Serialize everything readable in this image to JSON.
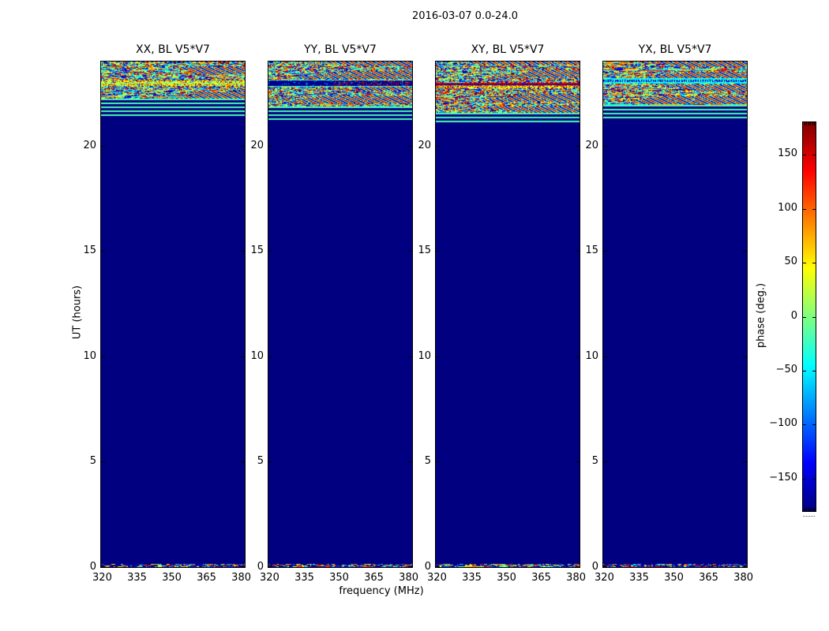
{
  "figure": {
    "title": "2016-03-07 0.0-24.0",
    "background_color": "#ffffff",
    "text_color": "#000000"
  },
  "chart_data": {
    "type": "heatmap",
    "title": "2016-03-07 0.0-24.0",
    "xlabel": "frequency (MHz)",
    "ylabel": "UT (hours)",
    "xlim": [
      319.5,
      381.5
    ],
    "ylim": [
      0,
      24
    ],
    "xticks": [
      320,
      335,
      350,
      365,
      380
    ],
    "xtick_labels": [
      "320",
      "335",
      "350",
      "365",
      "380"
    ],
    "yticks": [
      0,
      5,
      10,
      15,
      20
    ],
    "ytick_labels": [
      "0",
      "5",
      "10",
      "15",
      "20"
    ],
    "colormap": "jet",
    "value_field": "visibility phase",
    "value_unit": "deg",
    "value_range": [
      -180,
      180
    ],
    "background_value_deg": -180,
    "palette": {
      "navy": "#000080",
      "blue": "#0000ff",
      "cyan": "#00ffff",
      "mint_green": "#4dffb3",
      "yellow": "#ffff00",
      "red": "#ff0000",
      "dark_red": "#800000"
    },
    "colorbar": {
      "label": "phase (deg.)",
      "min": -180,
      "max": 180,
      "ticks": [
        150,
        100,
        50,
        0,
        -50,
        -100,
        -150
      ],
      "tick_labels": [
        "150",
        "100",
        "50",
        "0",
        "−50",
        "−100",
        "−150"
      ]
    },
    "panels": [
      {
        "key": "xx",
        "label": "XX, BL V5*V7",
        "seed": 101,
        "regions": {
          "noise_band_ut": [
            22.25,
            24.0
          ],
          "feature_band_ut": 23.1,
          "feature_style": "yellow-speckle",
          "stripe_band_ut": [
            21.42,
            22.25
          ],
          "solid_ut": [
            0.15,
            21.42
          ],
          "bottom_noise_ut": [
            0.0,
            0.15
          ]
        }
      },
      {
        "key": "yy",
        "label": "YY, BL V5*V7",
        "seed": 202,
        "regions": {
          "noise_band_ut": [
            21.87,
            24.0
          ],
          "feature_band_ut": 23.15,
          "feature_style": "navy-lines",
          "stripe_band_ut": [
            21.24,
            21.87
          ],
          "solid_ut": [
            0.15,
            21.24
          ],
          "bottom_noise_ut": [
            0.0,
            0.15
          ]
        }
      },
      {
        "key": "xy",
        "label": "XY, BL V5*V7",
        "seed": 303,
        "regions": {
          "noise_band_ut": [
            21.57,
            24.0
          ],
          "feature_band_ut": 23.0,
          "feature_style": "red-yellow",
          "stripe_band_ut": [
            21.0,
            21.57
          ],
          "solid_ut": [
            0.15,
            21.0
          ],
          "bottom_noise_ut": [
            0.0,
            0.15
          ]
        }
      },
      {
        "key": "yx",
        "label": "YX, BL V5*V7",
        "seed": 404,
        "regions": {
          "noise_band_ut": [
            21.93,
            24.0
          ],
          "feature_band_ut": 23.2,
          "feature_style": "cyan-band",
          "stripe_band_ut": [
            21.31,
            21.93
          ],
          "solid_ut": [
            0.15,
            21.31
          ],
          "bottom_noise_ut": [
            0.0,
            0.15
          ]
        }
      }
    ],
    "content_note": "Each panel: broadband random phase noise 21.4-24 UT with diagonal interference stripes, mint-green/navy horizontal stripe band below it, solid -180 deg navy elsewhere, thin random-phase strip at UT 0-0.15.",
    "legend_position": "right-colorbar",
    "grid": false
  }
}
